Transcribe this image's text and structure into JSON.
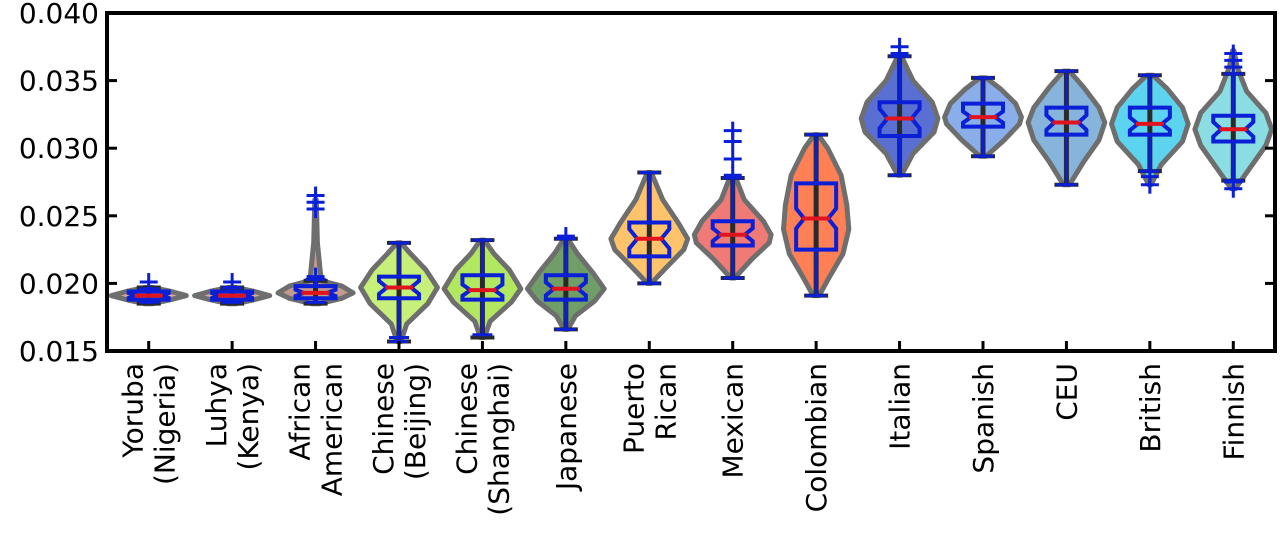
{
  "chart_data": {
    "type": "violin",
    "title": "",
    "xlabel": "",
    "ylabel": "",
    "ylim": [
      0.015,
      0.04
    ],
    "yticks": [
      "0.015",
      "0.020",
      "0.025",
      "0.030",
      "0.035",
      "0.040"
    ],
    "ytick_values": [
      0.015,
      0.02,
      0.025,
      0.03,
      0.035,
      0.04
    ],
    "grid": false,
    "categories": [
      {
        "lines": [
          "Yoruba",
          "(Nigeria)"
        ],
        "color": "#d9a79a",
        "min": 0.0185,
        "q1": 0.0188,
        "median": 0.0191,
        "q3": 0.0194,
        "max": 0.0197,
        "whisker_low": 0.0186,
        "whisker_high": 0.0196,
        "outliers": [
          0.0201
        ],
        "violin": [
          [
            0.0185,
            0.1
          ],
          [
            0.0188,
            0.6
          ],
          [
            0.0191,
            1.0
          ],
          [
            0.0194,
            0.6
          ],
          [
            0.0197,
            0.1
          ]
        ],
        "width": 0.9
      },
      {
        "lines": [
          "Luhya",
          "(Kenya)"
        ],
        "color": "#d9a79a",
        "min": 0.0185,
        "q1": 0.0188,
        "median": 0.0191,
        "q3": 0.0194,
        "max": 0.0197,
        "whisker_low": 0.0186,
        "whisker_high": 0.0197,
        "outliers": [
          0.0201
        ],
        "violin": [
          [
            0.0185,
            0.1
          ],
          [
            0.0188,
            0.6
          ],
          [
            0.0191,
            1.0
          ],
          [
            0.0194,
            0.6
          ],
          [
            0.0197,
            0.1
          ]
        ],
        "width": 0.9
      },
      {
        "lines": [
          "African",
          "American"
        ],
        "color": "#c49a8f",
        "min": 0.0185,
        "q1": 0.0189,
        "median": 0.0193,
        "q3": 0.0198,
        "max": 0.0202,
        "whisker_low": 0.0186,
        "whisker_high": 0.0203,
        "outliers": [
          0.0205,
          0.0255,
          0.026,
          0.0265
        ],
        "violin": [
          [
            0.0185,
            0.1
          ],
          [
            0.0189,
            0.7
          ],
          [
            0.0193,
            1.0
          ],
          [
            0.0198,
            0.7
          ],
          [
            0.0202,
            0.15
          ],
          [
            0.023,
            0.05
          ],
          [
            0.0262,
            0.02
          ]
        ],
        "width": 0.9
      },
      {
        "lines": [
          "Chinese",
          "(Beijing)"
        ],
        "color": "#c6f07a",
        "min": 0.0157,
        "q1": 0.0189,
        "median": 0.0197,
        "q3": 0.0205,
        "max": 0.023,
        "whisker_low": 0.016,
        "whisker_high": 0.023,
        "outliers": [
          0.0157
        ],
        "violin": [
          [
            0.0157,
            0.05
          ],
          [
            0.017,
            0.2
          ],
          [
            0.0185,
            0.75
          ],
          [
            0.0197,
            1.0
          ],
          [
            0.021,
            0.7
          ],
          [
            0.0222,
            0.3
          ],
          [
            0.023,
            0.05
          ]
        ],
        "width": 0.92
      },
      {
        "lines": [
          "Chinese",
          "(Shanghai)"
        ],
        "color": "#b2e85f",
        "min": 0.016,
        "q1": 0.0188,
        "median": 0.0195,
        "q3": 0.0206,
        "max": 0.0232,
        "whisker_low": 0.0162,
        "whisker_high": 0.0232,
        "outliers": [],
        "violin": [
          [
            0.016,
            0.05
          ],
          [
            0.0172,
            0.2
          ],
          [
            0.0186,
            0.75
          ],
          [
            0.0196,
            1.0
          ],
          [
            0.021,
            0.7
          ],
          [
            0.0222,
            0.3
          ],
          [
            0.0232,
            0.05
          ]
        ],
        "width": 0.92
      },
      {
        "lines": [
          "Japanese"
        ],
        "color": "#6f9e67",
        "min": 0.0166,
        "q1": 0.0188,
        "median": 0.0196,
        "q3": 0.0206,
        "max": 0.0233,
        "whisker_low": 0.0166,
        "whisker_high": 0.0233,
        "outliers": [
          0.0235
        ],
        "violin": [
          [
            0.0166,
            0.05
          ],
          [
            0.0176,
            0.25
          ],
          [
            0.0187,
            0.75
          ],
          [
            0.0196,
            1.0
          ],
          [
            0.0208,
            0.7
          ],
          [
            0.0222,
            0.3
          ],
          [
            0.0233,
            0.05
          ]
        ],
        "width": 0.92
      },
      {
        "lines": [
          "Puerto",
          "Rican"
        ],
        "color": "#ffc46b",
        "min": 0.02,
        "q1": 0.022,
        "median": 0.0233,
        "q3": 0.0245,
        "max": 0.0282,
        "whisker_low": 0.02,
        "whisker_high": 0.0282,
        "outliers": [],
        "violin": [
          [
            0.02,
            0.05
          ],
          [
            0.0212,
            0.45
          ],
          [
            0.0225,
            0.9
          ],
          [
            0.0233,
            1.0
          ],
          [
            0.0245,
            0.75
          ],
          [
            0.0262,
            0.35
          ],
          [
            0.0282,
            0.05
          ]
        ],
        "width": 0.92
      },
      {
        "lines": [
          "Mexican"
        ],
        "color": "#f07a76",
        "min": 0.0204,
        "q1": 0.0228,
        "median": 0.0236,
        "q3": 0.0246,
        "max": 0.0278,
        "whisker_low": 0.0204,
        "whisker_high": 0.0278,
        "outliers": [
          0.028,
          0.0292,
          0.0305,
          0.0313
        ],
        "violin": [
          [
            0.0204,
            0.05
          ],
          [
            0.0218,
            0.5
          ],
          [
            0.023,
            0.95
          ],
          [
            0.0236,
            1.0
          ],
          [
            0.0246,
            0.8
          ],
          [
            0.0262,
            0.3
          ],
          [
            0.0278,
            0.08
          ]
        ],
        "width": 0.92
      },
      {
        "lines": [
          "Colombian"
        ],
        "color": "#ff8055",
        "min": 0.0191,
        "q1": 0.0225,
        "median": 0.0248,
        "q3": 0.0274,
        "max": 0.031,
        "whisker_low": 0.0191,
        "whisker_high": 0.031,
        "outliers": [],
        "violin": [
          [
            0.0191,
            0.08
          ],
          [
            0.0205,
            0.35
          ],
          [
            0.0222,
            0.7
          ],
          [
            0.024,
            0.85
          ],
          [
            0.0258,
            0.8
          ],
          [
            0.028,
            0.65
          ],
          [
            0.03,
            0.3
          ],
          [
            0.031,
            0.05
          ]
        ],
        "width": 0.92
      },
      {
        "lines": [
          "Italian"
        ],
        "color": "#5a6fd2",
        "min": 0.028,
        "q1": 0.0309,
        "median": 0.0322,
        "q3": 0.0334,
        "max": 0.0368,
        "whisker_low": 0.028,
        "whisker_high": 0.0368,
        "outliers": [
          0.037,
          0.0375
        ],
        "violin": [
          [
            0.028,
            0.05
          ],
          [
            0.0296,
            0.35
          ],
          [
            0.0312,
            0.9
          ],
          [
            0.0322,
            1.0
          ],
          [
            0.0334,
            0.85
          ],
          [
            0.035,
            0.35
          ],
          [
            0.0368,
            0.05
          ]
        ],
        "width": 0.92
      },
      {
        "lines": [
          "Spanish"
        ],
        "color": "#8aaeea",
        "min": 0.0294,
        "q1": 0.0316,
        "median": 0.0323,
        "q3": 0.0333,
        "max": 0.0352,
        "whisker_low": 0.0294,
        "whisker_high": 0.0352,
        "outliers": [],
        "violin": [
          [
            0.0294,
            0.08
          ],
          [
            0.0306,
            0.55
          ],
          [
            0.0318,
            0.95
          ],
          [
            0.0323,
            1.0
          ],
          [
            0.0333,
            0.85
          ],
          [
            0.0344,
            0.45
          ],
          [
            0.0352,
            0.08
          ]
        ],
        "width": 0.92
      },
      {
        "lines": [
          "CEU"
        ],
        "color": "#86b4da",
        "min": 0.0273,
        "q1": 0.031,
        "median": 0.0319,
        "q3": 0.033,
        "max": 0.0357,
        "whisker_low": 0.0273,
        "whisker_high": 0.0357,
        "outliers": [],
        "violin": [
          [
            0.0273,
            0.08
          ],
          [
            0.029,
            0.45
          ],
          [
            0.0306,
            0.85
          ],
          [
            0.0319,
            1.0
          ],
          [
            0.033,
            0.85
          ],
          [
            0.0345,
            0.45
          ],
          [
            0.0357,
            0.08
          ]
        ],
        "width": 0.92
      },
      {
        "lines": [
          "British"
        ],
        "color": "#5dd4ef",
        "min": 0.0283,
        "q1": 0.031,
        "median": 0.0318,
        "q3": 0.033,
        "max": 0.0354,
        "whisker_low": 0.0283,
        "whisker_high": 0.0354,
        "outliers": [
          0.0273,
          0.0279
        ],
        "violin": [
          [
            0.0273,
            0.03
          ],
          [
            0.0288,
            0.3
          ],
          [
            0.0305,
            0.85
          ],
          [
            0.0318,
            1.0
          ],
          [
            0.033,
            0.85
          ],
          [
            0.0344,
            0.45
          ],
          [
            0.0354,
            0.08
          ]
        ],
        "width": 0.92
      },
      {
        "lines": [
          "Finnish"
        ],
        "color": "#8adde2",
        "min": 0.0276,
        "q1": 0.0305,
        "median": 0.0314,
        "q3": 0.0324,
        "max": 0.0355,
        "whisker_low": 0.0276,
        "whisker_high": 0.0355,
        "outliers": [
          0.027,
          0.0275,
          0.036,
          0.0365,
          0.037
        ],
        "violin": [
          [
            0.027,
            0.05
          ],
          [
            0.0286,
            0.45
          ],
          [
            0.0302,
            0.85
          ],
          [
            0.0314,
            1.0
          ],
          [
            0.0326,
            0.85
          ],
          [
            0.0342,
            0.35
          ],
          [
            0.036,
            0.1
          ],
          [
            0.0372,
            0.02
          ]
        ],
        "width": 0.92
      }
    ]
  }
}
